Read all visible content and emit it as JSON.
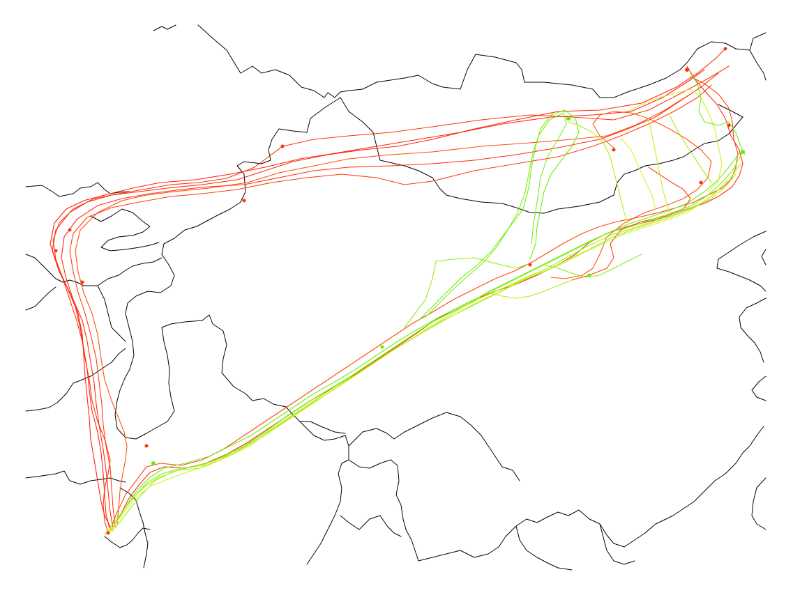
{
  "map": {
    "colors": {
      "background": "#ffffff",
      "borders": "#000000",
      "track_red": "#ff1a00",
      "track_orange": "#ff5a00",
      "track_green": "#66ee00",
      "track_lime": "#aaee00",
      "track_yellow": "#ddee22"
    }
  }
}
